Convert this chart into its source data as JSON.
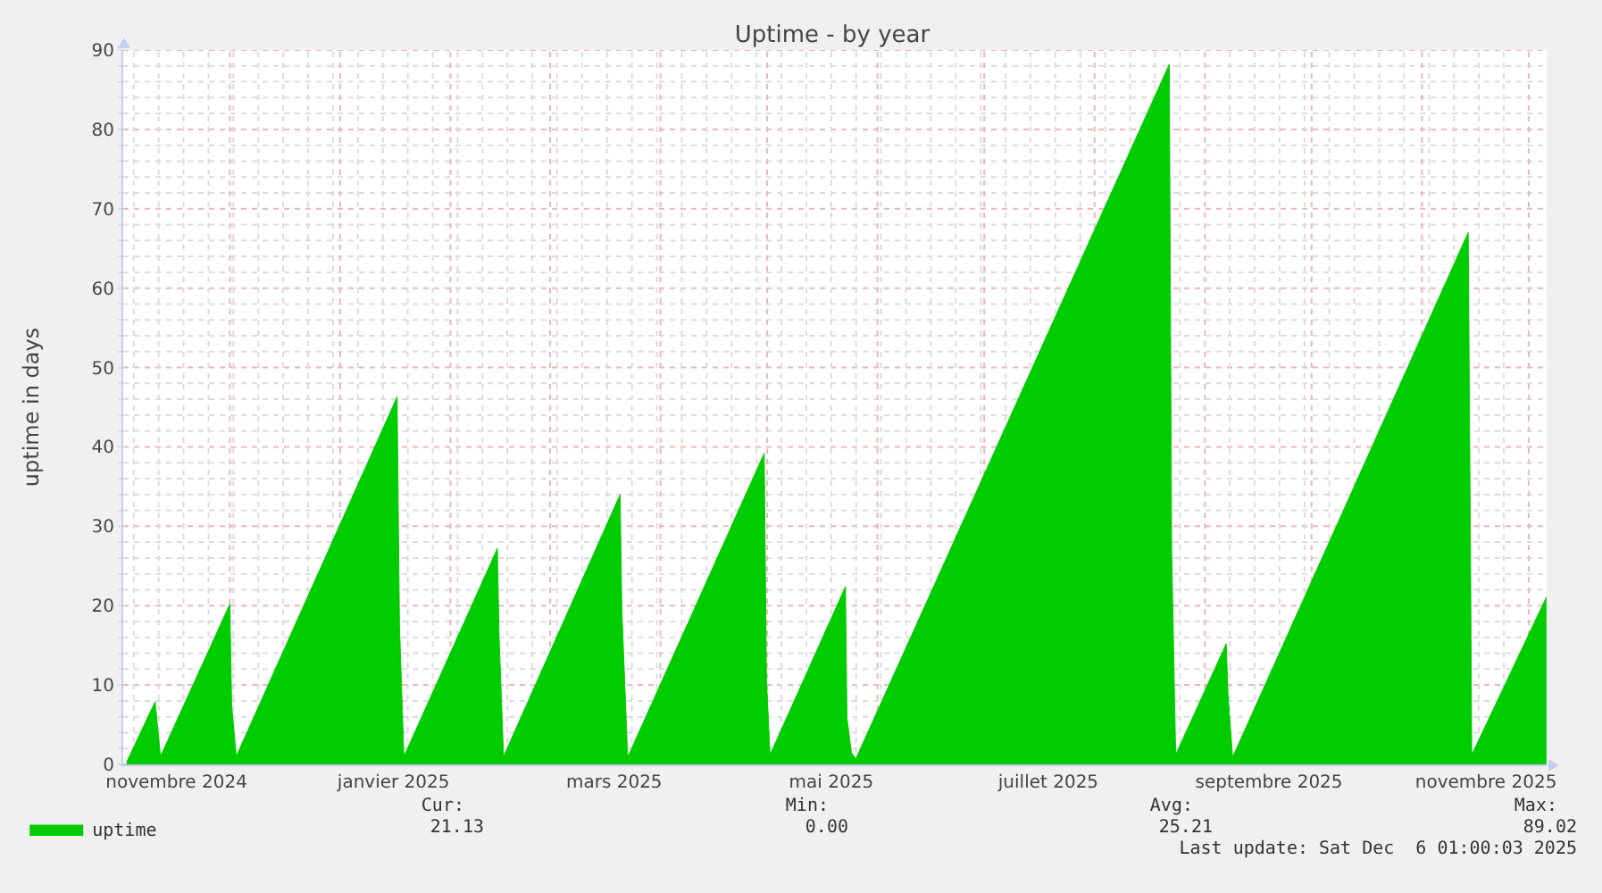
{
  "chart_data": {
    "type": "area",
    "title": "Uptime - by year",
    "ylabel": "uptime in days",
    "x": [
      "2024-11-02",
      "2024-11-10",
      "2024-11-11T12:00",
      "2024-12-01",
      "2024-12-01T12:00",
      "2024-12-02T19:00",
      "2025-01-17",
      "2025-01-17T16:00",
      "2025-01-18T22:00",
      "2025-02-14T04:00",
      "2025-02-14T16:00",
      "2025-02-15T22:00",
      "2025-03-20T16:00",
      "2025-03-21T04:00",
      "2025-03-22T19:00",
      "2025-04-30T04:00",
      "2025-04-30T19:00",
      "2025-05-01T19:00",
      "2025-05-23",
      "2025-05-23T10:00",
      "2025-05-24T16:00",
      "2025-05-25T22:00",
      "2025-08-22",
      "2025-08-22T16:00",
      "2025-08-23T19:00",
      "2025-09-07",
      "2025-09-07T12:00",
      "2025-09-08T19:00",
      "2025-11-14",
      "2025-11-14T16:00",
      "2025-11-15",
      "2025-12-06"
    ],
    "series": [
      {
        "name": "uptime",
        "color": "#00cc00",
        "values": [
          0.3,
          7.9,
          1.0,
          20.2,
          7.5,
          1.0,
          46.3,
          17.5,
          1.0,
          27.2,
          16.0,
          1.0,
          34.0,
          19.4,
          0.9,
          39.2,
          10.8,
          1.2,
          22.4,
          5.9,
          1.5,
          0.7,
          88.2,
          27.0,
          1.2,
          15.2,
          8.7,
          0.9,
          67.0,
          25.4,
          1.2,
          21.1
        ]
      }
    ],
    "xlim": [
      "2024-11-01T01:00",
      "2025-12-06T01:00"
    ],
    "xticks": [
      {
        "value": "2024-11-16",
        "label": "novembre 2024"
      },
      {
        "value": "2025-01-16",
        "label": "janvier 2025"
      },
      {
        "value": "2025-03-19",
        "label": "mars 2025"
      },
      {
        "value": "2025-05-19",
        "label": "mai 2025"
      },
      {
        "value": "2025-07-19",
        "label": "juillet 2025"
      },
      {
        "value": "2025-09-19",
        "label": "septembre 2025"
      },
      {
        "value": "2025-11-19",
        "label": "novembre 2025"
      },
      {
        "value": "2024-12-01",
        "label": null
      },
      {
        "value": "2025-01-01",
        "label": null
      },
      {
        "value": "2025-02-01",
        "label": null
      },
      {
        "value": "2025-03-01",
        "label": null
      },
      {
        "value": "2025-04-01",
        "label": null
      },
      {
        "value": "2025-05-01",
        "label": null
      },
      {
        "value": "2025-06-01",
        "label": null
      },
      {
        "value": "2025-07-01",
        "label": null
      },
      {
        "value": "2025-08-01",
        "label": null
      },
      {
        "value": "2025-09-01",
        "label": null
      },
      {
        "value": "2025-10-01",
        "label": null
      },
      {
        "value": "2025-11-01",
        "label": null
      },
      {
        "value": "2025-12-01",
        "label": null
      },
      {
        "value": "2024-11-04",
        "label": null
      },
      {
        "value": "2024-11-11",
        "label": null
      },
      {
        "value": "2024-11-18",
        "label": null
      },
      {
        "value": "2024-11-25",
        "label": null
      },
      {
        "value": "2024-12-02",
        "label": null
      },
      {
        "value": "2024-12-09",
        "label": null
      },
      {
        "value": "2024-12-16",
        "label": null
      },
      {
        "value": "2024-12-23",
        "label": null
      },
      {
        "value": "2024-12-30",
        "label": null
      },
      {
        "value": "2025-01-06",
        "label": null
      },
      {
        "value": "2025-01-13",
        "label": null
      },
      {
        "value": "2025-01-20",
        "label": null
      },
      {
        "value": "2025-01-27",
        "label": null
      },
      {
        "value": "2025-02-03",
        "label": null
      },
      {
        "value": "2025-02-10",
        "label": null
      },
      {
        "value": "2025-02-17",
        "label": null
      },
      {
        "value": "2025-02-24",
        "label": null
      },
      {
        "value": "2025-03-03",
        "label": null
      },
      {
        "value": "2025-03-10",
        "label": null
      },
      {
        "value": "2025-03-17",
        "label": null
      },
      {
        "value": "2025-03-24",
        "label": null
      },
      {
        "value": "2025-03-31",
        "label": null
      },
      {
        "value": "2025-04-07",
        "label": null
      },
      {
        "value": "2025-04-14",
        "label": null
      },
      {
        "value": "2025-04-21",
        "label": null
      },
      {
        "value": "2025-04-28",
        "label": null
      },
      {
        "value": "2025-05-05",
        "label": null
      },
      {
        "value": "2025-05-12",
        "label": null
      },
      {
        "value": "2025-05-19",
        "label": null
      },
      {
        "value": "2025-05-26",
        "label": null
      },
      {
        "value": "2025-06-02",
        "label": null
      },
      {
        "value": "2025-06-09",
        "label": null
      },
      {
        "value": "2025-06-16",
        "label": null
      },
      {
        "value": "2025-06-23",
        "label": null
      },
      {
        "value": "2025-06-30",
        "label": null
      },
      {
        "value": "2025-07-07",
        "label": null
      },
      {
        "value": "2025-07-14",
        "label": null
      },
      {
        "value": "2025-07-21",
        "label": null
      },
      {
        "value": "2025-07-28",
        "label": null
      },
      {
        "value": "2025-08-04",
        "label": null
      },
      {
        "value": "2025-08-11",
        "label": null
      },
      {
        "value": "2025-08-18",
        "label": null
      },
      {
        "value": "2025-08-25",
        "label": null
      },
      {
        "value": "2025-09-08",
        "label": null
      },
      {
        "value": "2025-09-15",
        "label": null
      },
      {
        "value": "2025-09-22",
        "label": null
      },
      {
        "value": "2025-09-29",
        "label": null
      },
      {
        "value": "2025-10-06",
        "label": null
      },
      {
        "value": "2025-10-13",
        "label": null
      },
      {
        "value": "2025-10-20",
        "label": null
      },
      {
        "value": "2025-10-27",
        "label": null
      },
      {
        "value": "2025-11-03",
        "label": null
      },
      {
        "value": "2025-11-10",
        "label": null
      },
      {
        "value": "2025-11-17",
        "label": null
      },
      {
        "value": "2025-11-24",
        "label": null
      }
    ],
    "ylim": [
      0,
      90
    ],
    "yticks": [
      0,
      {
        "value": 2,
        "label": null
      },
      {
        "value": 4,
        "label": null
      },
      {
        "value": 6,
        "label": null
      },
      {
        "value": 8,
        "label": null
      },
      10,
      {
        "value": 12,
        "label": null
      },
      {
        "value": 14,
        "label": null
      },
      {
        "value": 16,
        "label": null
      },
      {
        "value": 18,
        "label": null
      },
      20,
      {
        "value": 22,
        "label": null
      },
      {
        "value": 24,
        "label": null
      },
      {
        "value": 26,
        "label": null
      },
      {
        "value": 28,
        "label": null
      },
      30,
      {
        "value": 32,
        "label": null
      },
      {
        "value": 34,
        "label": null
      },
      {
        "value": 36,
        "label": null
      },
      {
        "value": 38,
        "label": null
      },
      40,
      {
        "value": 42,
        "label": null
      },
      {
        "value": 44,
        "label": null
      },
      {
        "value": 46,
        "label": null
      },
      {
        "value": 48,
        "label": null
      },
      50,
      {
        "value": 52,
        "label": null
      },
      {
        "value": 54,
        "label": null
      },
      {
        "value": 56,
        "label": null
      },
      {
        "value": 58,
        "label": null
      },
      60,
      {
        "value": 62,
        "label": null
      },
      {
        "value": 64,
        "label": null
      },
      {
        "value": 66,
        "label": null
      },
      {
        "value": 68,
        "label": null
      },
      70,
      {
        "value": 72,
        "label": null
      },
      {
        "value": 74,
        "label": null
      },
      {
        "value": 76,
        "label": null
      },
      {
        "value": 78,
        "label": null
      },
      80,
      {
        "value": 82,
        "label": null
      },
      {
        "value": 84,
        "label": null
      },
      {
        "value": 86,
        "label": null
      },
      {
        "value": 88,
        "label": null
      },
      90
    ],
    "grid": true,
    "legend": "bottom left",
    "annotations": [
      "Cur:",
      "21.13",
      "Min:",
      "0.00",
      "Avg:",
      "25.21",
      "Max:",
      "89.02",
      "Last update: Sat Dec  6 01:00:03 2025"
    ]
  }
}
